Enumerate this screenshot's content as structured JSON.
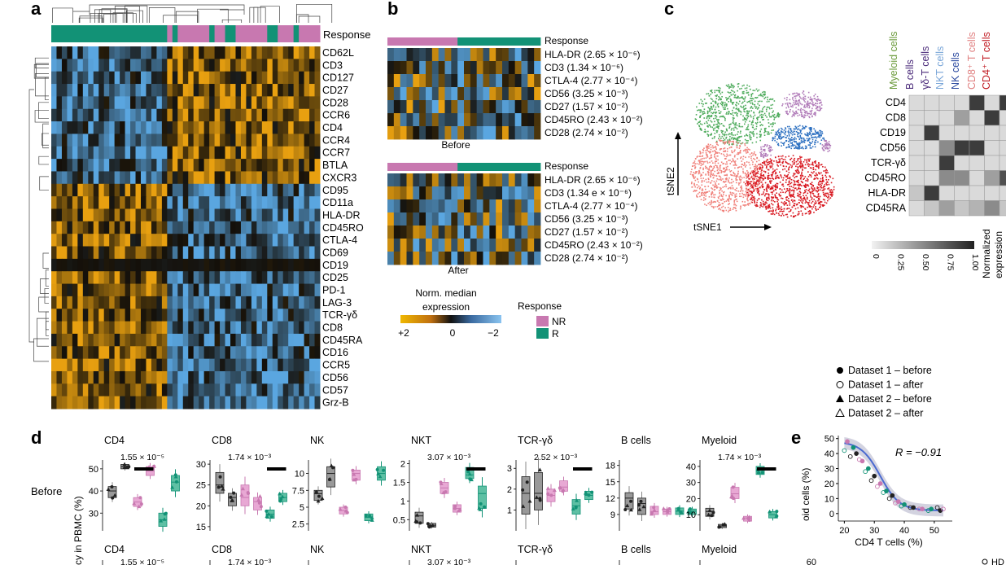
{
  "panels": [
    "a",
    "b",
    "c",
    "d",
    "e"
  ],
  "colors": {
    "NR": "#c878b0",
    "R": "#129276",
    "high": "#e8a010",
    "low": "#5aa6e0",
    "mid": "#111111",
    "tsne_green": "#4caa5a",
    "tsne_purple": "#b07ab8",
    "tsne_blue": "#2b6fc0",
    "tsne_salmon": "#f0807a",
    "tsne_red": "#d81820",
    "gray_box": "#888888"
  },
  "panel_a": {
    "response_label": "Response",
    "markers": [
      "CD62L",
      "CD3",
      "CD127",
      "CD27",
      "CD28",
      "CCR6",
      "CD4",
      "CCR4",
      "CCR7",
      "BTLA",
      "CXCR3",
      "CD95",
      "CD11a",
      "HLA-DR",
      "CD45RO",
      "CTLA-4",
      "CD69",
      "CD19",
      "CD25",
      "PD-1",
      "LAG-3",
      "TCR-γδ",
      "CD8",
      "CD45RA",
      "CD16",
      "CCR5",
      "CD56",
      "CD57",
      "Grz-B"
    ],
    "response_pattern": [
      "R",
      "R",
      "R",
      "R",
      "R",
      "R",
      "R",
      "R",
      "R",
      "R",
      "R",
      "R",
      "R",
      "R",
      "R",
      "R",
      "R",
      "R",
      "R",
      "R",
      "R",
      "R",
      "NR",
      "R",
      "NR",
      "NR",
      "NR",
      "NR",
      "NR",
      "NR",
      "R",
      "NR",
      "NR",
      "R",
      "R",
      "NR",
      "NR",
      "NR",
      "NR",
      "NR",
      "NR",
      "R",
      "R",
      "NR",
      "NR",
      "NR",
      "R",
      "NR",
      "NR",
      "NR",
      "NR"
    ]
  },
  "panel_b": {
    "response_label": "Response",
    "before_rows": [
      "HLA-DR (2.65 × 10⁻⁶)",
      "CD3 (1.34 × 10⁻⁶)",
      "CTLA-4 (2.77 × 10⁻⁴)",
      "CD56 (3.25 × 10⁻³)",
      "CD27 (1.57 × 10⁻²)",
      "CD45RO (2.43 × 10⁻²)",
      "CD28 (2.74 × 10⁻²)"
    ],
    "after_rows": [
      "HLA-DR (2.65 × 10⁻⁶)",
      "CD3 (1.34 e × 10⁻⁶)",
      "CTLA-4 (2.77 × 10⁻⁴)",
      "CD56 (3.25 × 10⁻³)",
      "CD27 (1.57 × 10⁻²)",
      "CD45RO (2.43 × 10⁻²)",
      "CD28 (2.74 × 10⁻²)"
    ],
    "before_label": "Before",
    "after_label": "After",
    "colorbar_title_1": "Norm. median",
    "colorbar_title_2": "expression",
    "colorbar_ticks": [
      "+2",
      "0",
      "−2"
    ],
    "legend_title": "Response",
    "legend_items": [
      "NR",
      "R"
    ]
  },
  "panel_c": {
    "axis_y": "tSNE2",
    "axis_x": "tSNE1",
    "cell_types": [
      "Myeloid cells",
      "B cells",
      "γδ-T cells",
      "NKT cells",
      "NK cells",
      "CD8⁺ T cells",
      "CD4⁺ T cells"
    ],
    "cell_type_colors": [
      "#6a9a3a",
      "#4a2a7a",
      "#4a2a7a",
      "#7aa6d8",
      "#2b4aa0",
      "#e08080",
      "#c01820"
    ],
    "markers": [
      "CD4",
      "CD8",
      "CD19",
      "CD56",
      "TCR-γδ",
      "CD45RO",
      "HLA-DR",
      "CD45RA"
    ],
    "matrix": [
      [
        0.1,
        0.1,
        0.1,
        0.1,
        0.9,
        0.1,
        0.9
      ],
      [
        0.1,
        0.1,
        0.1,
        0.4,
        0.1,
        0.9,
        0.1
      ],
      [
        0.1,
        0.9,
        0.1,
        0.1,
        0.1,
        0.1,
        0.1
      ],
      [
        0.1,
        0.1,
        0.5,
        0.9,
        0.9,
        0.1,
        0.1
      ],
      [
        0.1,
        0.1,
        0.9,
        0.1,
        0.1,
        0.1,
        0.1
      ],
      [
        0.1,
        0.1,
        0.5,
        0.5,
        0.1,
        0.4,
        0.8
      ],
      [
        0.2,
        0.9,
        0.1,
        0.1,
        0.1,
        0.1,
        0.1
      ],
      [
        0.1,
        0.2,
        0.4,
        0.2,
        0.3,
        0.5,
        0.2
      ]
    ],
    "colorbar_ticks": [
      "0",
      "0.25",
      "0.50",
      "0.75",
      "1.00"
    ],
    "colorbar_title_1": "Normalized",
    "colorbar_title_2": "expression"
  },
  "panel_d": {
    "row_label": "Before",
    "ylabel": "cy in PBMC (%)",
    "subplots": [
      {
        "title": "CD4",
        "pval": "1.55 × 10⁻⁵",
        "ymin": 22,
        "ymax": 54,
        "ticks": [
          30,
          40,
          50
        ],
        "groups": [
          [
            37,
            40,
            42
          ],
          [
            50,
            51,
            52
          ],
          [
            33,
            35,
            37
          ],
          [
            47,
            49,
            51
          ],
          [
            24,
            27,
            30
          ],
          [
            40,
            44,
            47
          ]
        ],
        "bar": [
          2,
          3
        ]
      },
      {
        "title": "CD8",
        "pval": "1.74 × 10⁻³",
        "ymin": 14,
        "ymax": 31,
        "ticks": [
          15,
          20,
          25,
          30
        ],
        "groups": [
          [
            23,
            25,
            28
          ],
          [
            20,
            22,
            23
          ],
          [
            20,
            22,
            25
          ],
          [
            19,
            21,
            22
          ],
          [
            17,
            18,
            19
          ],
          [
            21,
            22,
            23
          ]
        ],
        "bar": [
          4,
          5
        ]
      },
      {
        "title": "NK",
        "pval": "",
        "ymin": 1.5,
        "ymax": 12,
        "ticks": [
          2.5,
          5.0,
          7.5,
          10.0
        ],
        "groups": [
          [
            6,
            7,
            7.5
          ],
          [
            8,
            10,
            11
          ],
          [
            4,
            4.5,
            5
          ],
          [
            9,
            10,
            10.5
          ],
          [
            3,
            3.5,
            4
          ],
          [
            9,
            10,
            11
          ]
        ],
        "bar": null
      },
      {
        "title": "NKT",
        "pval": "3.07 × 10⁻³",
        "ymin": 0.2,
        "ymax": 2.1,
        "ticks": [
          0.5,
          1.0,
          1.5,
          2.0
        ],
        "groups": [
          [
            0.4,
            0.6,
            0.7
          ],
          [
            0.3,
            0.35,
            0.4
          ],
          [
            1.2,
            1.35,
            1.5
          ],
          [
            0.7,
            0.8,
            0.9
          ],
          [
            1.6,
            1.7,
            1.9
          ],
          [
            0.8,
            1.2,
            1.4
          ]
        ],
        "bar": [
          4,
          5
        ]
      },
      {
        "title": "TCR-γδ",
        "pval": "2.52 × 10⁻³",
        "ymin": 0,
        "ymax": 3.4,
        "ticks": [
          1,
          2,
          3
        ],
        "groups": [
          [
            0.8,
            1.8,
            2.6
          ],
          [
            1.0,
            1.8,
            2.8
          ],
          [
            1.4,
            1.7,
            2.0
          ],
          [
            1.9,
            2.1,
            2.4
          ],
          [
            0.8,
            1.2,
            1.5
          ],
          [
            1.5,
            1.7,
            1.9
          ]
        ],
        "bar": [
          4,
          5
        ]
      },
      {
        "title": "B cells",
        "pval": "",
        "ymin": 6,
        "ymax": 19,
        "ticks": [
          9,
          12,
          15,
          18
        ],
        "groups": [
          [
            10,
            12,
            13
          ],
          [
            9,
            11,
            12
          ],
          [
            9,
            9.5,
            10.5
          ],
          [
            9,
            9.5,
            10
          ],
          [
            9,
            9.6,
            10.2
          ],
          [
            9,
            9.6,
            10
          ]
        ],
        "bar": null
      },
      {
        "title": "Myeloid",
        "pval": "1.74 × 10⁻³",
        "ymin": 0,
        "ymax": 44,
        "ticks": [
          10,
          20,
          30,
          40
        ],
        "groups": [
          [
            9,
            12,
            14
          ],
          [
            2,
            3,
            4
          ],
          [
            20,
            23,
            27
          ],
          [
            6,
            8,
            9
          ],
          [
            35,
            38,
            40
          ],
          [
            8,
            10,
            12
          ]
        ],
        "bar": [
          4,
          5
        ]
      }
    ],
    "bottom_titles": [
      "CD4",
      "CD8",
      "NK",
      "NKT",
      "TCR-γδ",
      "B cells",
      "Myeloid"
    ],
    "bottom_pvals": [
      "1.55 × 10⁻⁵",
      "1.74 × 10⁻³",
      "",
      "3.07 × 10⁻³",
      "",
      "",
      ""
    ]
  },
  "panel_e": {
    "legend": [
      "Dataset 1 – before",
      "Dataset 1 – after",
      "Dataset 2 – before",
      "Dataset 2 – after"
    ],
    "r_text": "R = −0.91",
    "xlabel": "CD4 T cells (%)",
    "ylabel": "oid cells (%)",
    "xticks": [
      20,
      30,
      40,
      50
    ],
    "yticks": [
      0,
      10,
      20,
      30,
      40,
      50
    ],
    "bottom_ytick": "60",
    "hd_text": "HD"
  },
  "chart_data": {
    "type": "scatter",
    "title": "",
    "xlabel": "CD4 T cells (%)",
    "ylabel": "Myeloid cells (%)",
    "xlim": [
      18,
      56
    ],
    "ylim": [
      -5,
      52
    ],
    "r": -0.91,
    "series": [
      {
        "values": [
          [
            21,
            48
          ],
          [
            23,
            44
          ],
          [
            24,
            40
          ],
          [
            26,
            35
          ],
          [
            28,
            30
          ],
          [
            30,
            25
          ],
          [
            32,
            20
          ],
          [
            34,
            15
          ],
          [
            36,
            12
          ],
          [
            38,
            8
          ],
          [
            40,
            6
          ],
          [
            43,
            4
          ],
          [
            46,
            3
          ],
          [
            49,
            3
          ],
          [
            52,
            2
          ]
        ]
      },
      {
        "values": [
          [
            20,
            42
          ],
          [
            22,
            38
          ],
          [
            25,
            36
          ],
          [
            27,
            28
          ],
          [
            29,
            22
          ],
          [
            31,
            18
          ],
          [
            33,
            14
          ],
          [
            35,
            10
          ],
          [
            37,
            7
          ],
          [
            39,
            5
          ],
          [
            42,
            4
          ],
          [
            45,
            3
          ],
          [
            48,
            2
          ],
          [
            51,
            4
          ],
          [
            53,
            3
          ]
        ]
      }
    ]
  }
}
